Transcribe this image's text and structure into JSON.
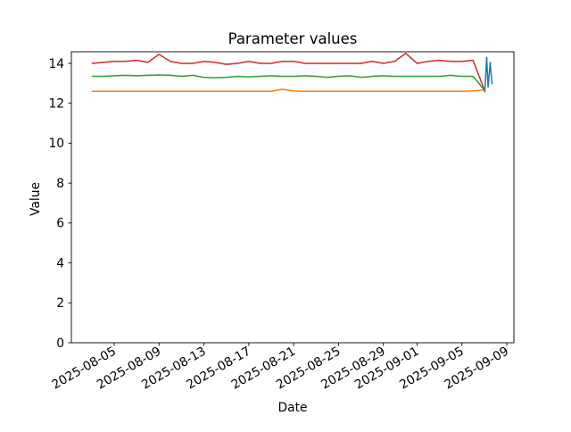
{
  "chart_data": {
    "type": "line",
    "title": "Parameter values",
    "xlabel": "Date",
    "ylabel": "Value",
    "x_tick_labels": [
      "2025-08-05",
      "2025-08-09",
      "2025-08-13",
      "2025-08-17",
      "2025-08-21",
      "2025-08-25",
      "2025-08-29",
      "2025-09-01",
      "2025-09-05",
      "2025-09-09"
    ],
    "y_ticks": [
      0,
      2,
      4,
      6,
      8,
      10,
      12,
      14
    ],
    "ylim": [
      0,
      14.58
    ],
    "grid": false,
    "legend": "none",
    "background_color": "#ffffff",
    "axis_color": "#000000",
    "series": [
      {
        "name": "blue-line",
        "color": "#1f77b4",
        "points": [
          [
            "2025-09-06T22:00",
            12.73
          ],
          [
            "2025-09-07T01:00",
            12.58
          ],
          [
            "2025-09-07T05:00",
            14.3
          ],
          [
            "2025-09-07T08:00",
            12.8
          ],
          [
            "2025-09-07T12:30",
            14.05
          ],
          [
            "2025-09-07T16:30",
            12.95
          ]
        ]
      },
      {
        "name": "orange-line",
        "color": "#ff7f0e",
        "points": [
          [
            "2025-08-03",
            12.6
          ],
          [
            "2025-08-04",
            12.6
          ],
          [
            "2025-08-05",
            12.6
          ],
          [
            "2025-08-06",
            12.6
          ],
          [
            "2025-08-07",
            12.6
          ],
          [
            "2025-08-08",
            12.6
          ],
          [
            "2025-08-09",
            12.6
          ],
          [
            "2025-08-10",
            12.6
          ],
          [
            "2025-08-11",
            12.6
          ],
          [
            "2025-08-12",
            12.6
          ],
          [
            "2025-08-13",
            12.6
          ],
          [
            "2025-08-14",
            12.6
          ],
          [
            "2025-08-15",
            12.6
          ],
          [
            "2025-08-16",
            12.6
          ],
          [
            "2025-08-17",
            12.6
          ],
          [
            "2025-08-18",
            12.6
          ],
          [
            "2025-08-19",
            12.6
          ],
          [
            "2025-08-20",
            12.7
          ],
          [
            "2025-08-21",
            12.62
          ],
          [
            "2025-08-22",
            12.6
          ],
          [
            "2025-08-23",
            12.6
          ],
          [
            "2025-08-24",
            12.6
          ],
          [
            "2025-08-25",
            12.6
          ],
          [
            "2025-08-26",
            12.6
          ],
          [
            "2025-08-27",
            12.6
          ],
          [
            "2025-08-28",
            12.6
          ],
          [
            "2025-08-29",
            12.6
          ],
          [
            "2025-08-30",
            12.6
          ],
          [
            "2025-08-31",
            12.6
          ],
          [
            "2025-09-01",
            12.6
          ],
          [
            "2025-09-02",
            12.6
          ],
          [
            "2025-09-03",
            12.6
          ],
          [
            "2025-09-04",
            12.6
          ],
          [
            "2025-09-05",
            12.6
          ],
          [
            "2025-09-06",
            12.62
          ],
          [
            "2025-09-07",
            12.67
          ]
        ]
      },
      {
        "name": "green-line",
        "color": "#2ca02c",
        "points": [
          [
            "2025-08-03",
            13.35
          ],
          [
            "2025-08-04",
            13.35
          ],
          [
            "2025-08-05",
            13.38
          ],
          [
            "2025-08-06",
            13.4
          ],
          [
            "2025-08-07",
            13.38
          ],
          [
            "2025-08-08",
            13.4
          ],
          [
            "2025-08-09",
            13.42
          ],
          [
            "2025-08-10",
            13.4
          ],
          [
            "2025-08-11",
            13.35
          ],
          [
            "2025-08-12",
            13.4
          ],
          [
            "2025-08-13",
            13.3
          ],
          [
            "2025-08-14",
            13.28
          ],
          [
            "2025-08-15",
            13.3
          ],
          [
            "2025-08-16",
            13.35
          ],
          [
            "2025-08-17",
            13.32
          ],
          [
            "2025-08-18",
            13.35
          ],
          [
            "2025-08-19",
            13.38
          ],
          [
            "2025-08-20",
            13.35
          ],
          [
            "2025-08-21",
            13.35
          ],
          [
            "2025-08-22",
            13.38
          ],
          [
            "2025-08-23",
            13.35
          ],
          [
            "2025-08-24",
            13.3
          ],
          [
            "2025-08-25",
            13.35
          ],
          [
            "2025-08-26",
            13.38
          ],
          [
            "2025-08-27",
            13.3
          ],
          [
            "2025-08-28",
            13.35
          ],
          [
            "2025-08-29",
            13.38
          ],
          [
            "2025-08-30",
            13.35
          ],
          [
            "2025-08-31",
            13.35
          ],
          [
            "2025-09-01",
            13.35
          ],
          [
            "2025-09-02",
            13.35
          ],
          [
            "2025-09-03",
            13.35
          ],
          [
            "2025-09-04",
            13.4
          ],
          [
            "2025-09-05",
            13.35
          ],
          [
            "2025-09-06",
            13.35
          ],
          [
            "2025-09-07",
            12.67
          ]
        ]
      },
      {
        "name": "red-line",
        "color": "#d62728",
        "points": [
          [
            "2025-08-03",
            14.0
          ],
          [
            "2025-08-04",
            14.05
          ],
          [
            "2025-08-05",
            14.1
          ],
          [
            "2025-08-06",
            14.1
          ],
          [
            "2025-08-07",
            14.15
          ],
          [
            "2025-08-08",
            14.05
          ],
          [
            "2025-08-09",
            14.45
          ],
          [
            "2025-08-10",
            14.1
          ],
          [
            "2025-08-11",
            14.0
          ],
          [
            "2025-08-12",
            14.0
          ],
          [
            "2025-08-13",
            14.1
          ],
          [
            "2025-08-14",
            14.05
          ],
          [
            "2025-08-15",
            13.95
          ],
          [
            "2025-08-16",
            14.0
          ],
          [
            "2025-08-17",
            14.1
          ],
          [
            "2025-08-18",
            14.0
          ],
          [
            "2025-08-19",
            14.0
          ],
          [
            "2025-08-20",
            14.1
          ],
          [
            "2025-08-21",
            14.1
          ],
          [
            "2025-08-22",
            14.0
          ],
          [
            "2025-08-23",
            14.0
          ],
          [
            "2025-08-24",
            14.0
          ],
          [
            "2025-08-25",
            14.0
          ],
          [
            "2025-08-26",
            14.0
          ],
          [
            "2025-08-27",
            14.0
          ],
          [
            "2025-08-28",
            14.1
          ],
          [
            "2025-08-29",
            14.0
          ],
          [
            "2025-08-30",
            14.1
          ],
          [
            "2025-08-31",
            14.5
          ],
          [
            "2025-09-01",
            14.0
          ],
          [
            "2025-09-02",
            14.1
          ],
          [
            "2025-09-03",
            14.15
          ],
          [
            "2025-09-04",
            14.1
          ],
          [
            "2025-09-05",
            14.1
          ],
          [
            "2025-09-06",
            14.15
          ],
          [
            "2025-09-07",
            12.67
          ]
        ]
      }
    ]
  }
}
